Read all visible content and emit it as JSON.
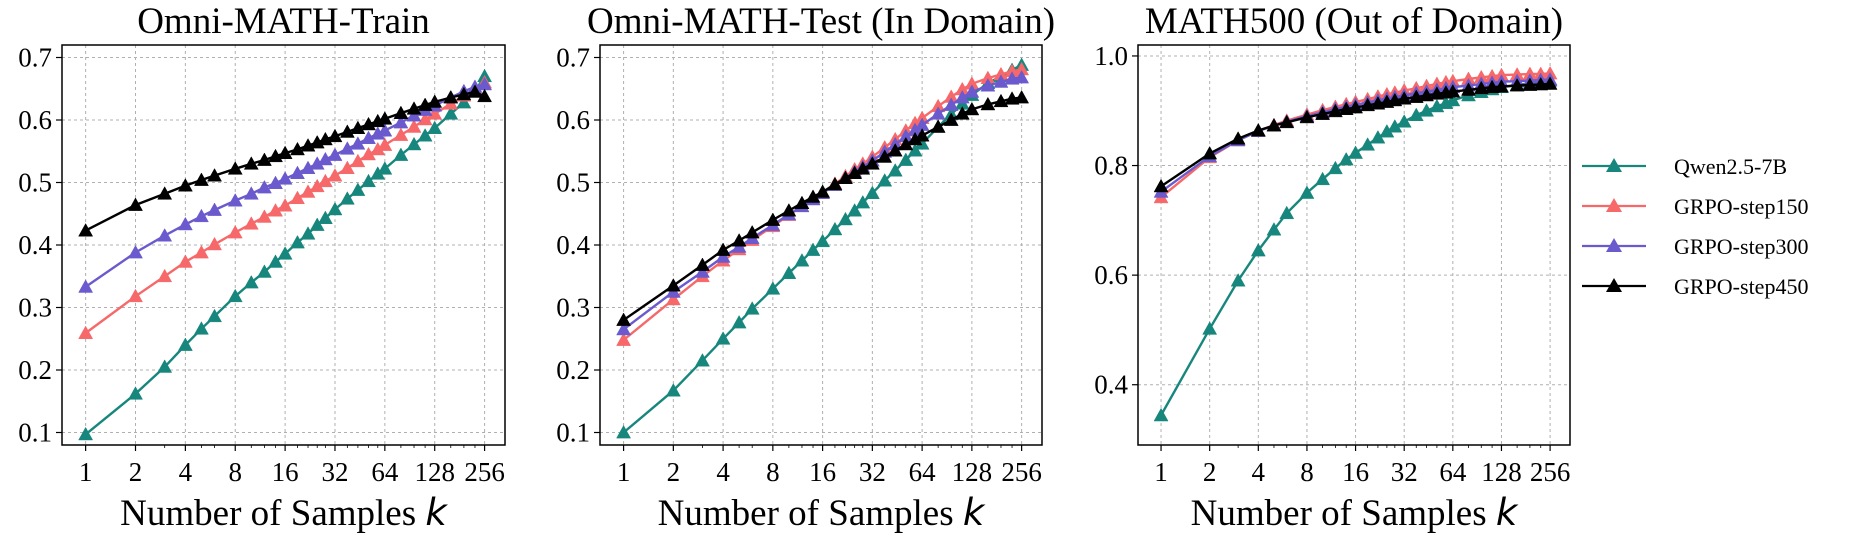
{
  "chart_data": [
    {
      "type": "line",
      "title": "Omni-MATH-Train",
      "xlabel": "Number of Samples",
      "xlabel_var": "k",
      "ylabel": "",
      "xscale": "log2",
      "x": [
        1,
        2,
        3,
        4,
        5,
        6,
        8,
        10,
        12,
        14,
        16,
        19,
        22,
        25,
        28,
        32,
        38,
        44,
        51,
        58,
        64,
        80,
        96,
        112,
        128,
        160,
        192,
        224,
        256
      ],
      "xticks": [
        1,
        2,
        4,
        8,
        16,
        32,
        64,
        128,
        256
      ],
      "xtick_labels": [
        "1",
        "2",
        "4",
        "8",
        "16",
        "32",
        "64",
        "128",
        "256"
      ],
      "ylim": [
        0.08,
        0.72
      ],
      "yticks": [
        0.1,
        0.2,
        0.3,
        0.4,
        0.5,
        0.6,
        0.7
      ],
      "ytick_labels": [
        "0.1",
        "0.2",
        "0.3",
        "0.4",
        "0.5",
        "0.6",
        "0.7"
      ],
      "grid": true,
      "series": [
        {
          "name": "Qwen2.5-7B",
          "color": "#17877d",
          "values": [
            0.097,
            0.162,
            0.205,
            0.24,
            0.266,
            0.286,
            0.318,
            0.34,
            0.357,
            0.373,
            0.386,
            0.404,
            0.418,
            0.432,
            0.443,
            0.457,
            0.474,
            0.488,
            0.502,
            0.514,
            0.522,
            0.544,
            0.561,
            0.575,
            0.587,
            0.61,
            0.628,
            0.646,
            0.67
          ]
        },
        {
          "name": "GRPO-step150",
          "color": "#f6686a",
          "values": [
            0.259,
            0.318,
            0.35,
            0.373,
            0.388,
            0.401,
            0.42,
            0.434,
            0.445,
            0.455,
            0.463,
            0.475,
            0.485,
            0.494,
            0.502,
            0.511,
            0.523,
            0.534,
            0.545,
            0.553,
            0.56,
            0.576,
            0.589,
            0.601,
            0.61,
            0.626,
            0.639,
            0.65,
            0.66
          ]
        },
        {
          "name": "GRPO-step300",
          "color": "#6a5acd",
          "values": [
            0.333,
            0.388,
            0.415,
            0.433,
            0.446,
            0.456,
            0.471,
            0.482,
            0.492,
            0.499,
            0.506,
            0.515,
            0.523,
            0.53,
            0.537,
            0.544,
            0.554,
            0.562,
            0.571,
            0.578,
            0.583,
            0.596,
            0.607,
            0.616,
            0.623,
            0.636,
            0.646,
            0.653,
            0.657
          ]
        },
        {
          "name": "GRPO-step450",
          "color": "#000000",
          "values": [
            0.423,
            0.464,
            0.482,
            0.495,
            0.504,
            0.511,
            0.522,
            0.53,
            0.536,
            0.542,
            0.547,
            0.553,
            0.559,
            0.564,
            0.569,
            0.574,
            0.581,
            0.587,
            0.593,
            0.598,
            0.602,
            0.611,
            0.618,
            0.624,
            0.629,
            0.636,
            0.641,
            0.645,
            0.638
          ]
        }
      ]
    },
    {
      "type": "line",
      "title": "Omni-MATH-Test (In Domain)",
      "xlabel": "Number of Samples",
      "xlabel_var": "k",
      "ylabel": "",
      "xscale": "log2",
      "x": [
        1,
        2,
        3,
        4,
        5,
        6,
        8,
        10,
        12,
        14,
        16,
        19,
        22,
        25,
        28,
        32,
        38,
        44,
        51,
        58,
        64,
        80,
        96,
        112,
        128,
        160,
        192,
        224,
        256
      ],
      "xticks": [
        1,
        2,
        4,
        8,
        16,
        32,
        64,
        128,
        256
      ],
      "xtick_labels": [
        "1",
        "2",
        "4",
        "8",
        "16",
        "32",
        "64",
        "128",
        "256"
      ],
      "ylim": [
        0.08,
        0.72
      ],
      "yticks": [
        0.1,
        0.2,
        0.3,
        0.4,
        0.5,
        0.6,
        0.7
      ],
      "ytick_labels": [
        "0.1",
        "0.2",
        "0.3",
        "0.4",
        "0.5",
        "0.6",
        "0.7"
      ],
      "grid": true,
      "series": [
        {
          "name": "Qwen2.5-7B",
          "color": "#17877d",
          "values": [
            0.1,
            0.167,
            0.215,
            0.25,
            0.276,
            0.298,
            0.33,
            0.355,
            0.375,
            0.392,
            0.406,
            0.425,
            0.441,
            0.455,
            0.468,
            0.483,
            0.503,
            0.519,
            0.536,
            0.551,
            0.562,
            0.589,
            0.609,
            0.626,
            0.64,
            0.659,
            0.67,
            0.68,
            0.688
          ]
        },
        {
          "name": "GRPO-step150",
          "color": "#f6686a",
          "values": [
            0.248,
            0.313,
            0.35,
            0.375,
            0.393,
            0.408,
            0.43,
            0.448,
            0.462,
            0.474,
            0.484,
            0.498,
            0.51,
            0.521,
            0.53,
            0.541,
            0.556,
            0.569,
            0.583,
            0.595,
            0.603,
            0.622,
            0.637,
            0.649,
            0.658,
            0.667,
            0.673,
            0.678,
            0.681
          ]
        },
        {
          "name": "GRPO-step300",
          "color": "#6a5acd",
          "values": [
            0.265,
            0.325,
            0.357,
            0.381,
            0.397,
            0.411,
            0.432,
            0.449,
            0.462,
            0.473,
            0.483,
            0.496,
            0.507,
            0.517,
            0.525,
            0.535,
            0.549,
            0.561,
            0.574,
            0.584,
            0.592,
            0.61,
            0.624,
            0.636,
            0.645,
            0.655,
            0.661,
            0.666,
            0.668
          ]
        },
        {
          "name": "GRPO-step450",
          "color": "#000000",
          "values": [
            0.28,
            0.335,
            0.368,
            0.392,
            0.407,
            0.42,
            0.44,
            0.455,
            0.467,
            0.477,
            0.485,
            0.497,
            0.507,
            0.515,
            0.522,
            0.53,
            0.541,
            0.551,
            0.561,
            0.569,
            0.575,
            0.589,
            0.6,
            0.61,
            0.617,
            0.625,
            0.63,
            0.634,
            0.636
          ]
        }
      ]
    },
    {
      "type": "line",
      "title": "MATH500 (Out of Domain)",
      "xlabel": "Number of Samples",
      "xlabel_var": "k",
      "ylabel": "",
      "xscale": "log2",
      "x": [
        1,
        2,
        3,
        4,
        5,
        6,
        8,
        10,
        12,
        14,
        16,
        19,
        22,
        25,
        28,
        32,
        38,
        44,
        51,
        58,
        64,
        80,
        96,
        112,
        128,
        160,
        192,
        224,
        256
      ],
      "xticks": [
        1,
        2,
        4,
        8,
        16,
        32,
        64,
        128,
        256
      ],
      "xtick_labels": [
        "1",
        "2",
        "4",
        "8",
        "16",
        "32",
        "64",
        "128",
        "256"
      ],
      "ylim": [
        0.29,
        1.02
      ],
      "yticks": [
        0.4,
        0.6,
        0.8,
        1.0
      ],
      "ytick_labels": [
        "0.4",
        "0.6",
        "0.8",
        "1.0"
      ],
      "grid": true,
      "series": [
        {
          "name": "Qwen2.5-7B",
          "color": "#17877d",
          "values": [
            0.344,
            0.502,
            0.59,
            0.645,
            0.683,
            0.713,
            0.75,
            0.775,
            0.795,
            0.811,
            0.823,
            0.838,
            0.851,
            0.862,
            0.871,
            0.88,
            0.892,
            0.9,
            0.908,
            0.914,
            0.919,
            0.928,
            0.934,
            0.939,
            0.943,
            0.947,
            0.95,
            0.953,
            0.955
          ]
        },
        {
          "name": "GRPO-step150",
          "color": "#f6686a",
          "values": [
            0.742,
            0.815,
            0.846,
            0.863,
            0.874,
            0.882,
            0.893,
            0.901,
            0.907,
            0.912,
            0.916,
            0.921,
            0.926,
            0.93,
            0.933,
            0.937,
            0.941,
            0.945,
            0.949,
            0.952,
            0.954,
            0.958,
            0.961,
            0.963,
            0.965,
            0.966,
            0.967,
            0.967,
            0.968
          ]
        },
        {
          "name": "GRPO-step300",
          "color": "#6a5acd",
          "values": [
            0.752,
            0.817,
            0.846,
            0.863,
            0.873,
            0.88,
            0.89,
            0.897,
            0.903,
            0.907,
            0.911,
            0.915,
            0.919,
            0.922,
            0.925,
            0.928,
            0.932,
            0.935,
            0.938,
            0.941,
            0.943,
            0.946,
            0.949,
            0.951,
            0.953,
            0.954,
            0.955,
            0.956,
            0.957
          ]
        },
        {
          "name": "GRPO-step450",
          "color": "#000000",
          "values": [
            0.762,
            0.822,
            0.849,
            0.864,
            0.873,
            0.879,
            0.888,
            0.894,
            0.899,
            0.903,
            0.906,
            0.91,
            0.913,
            0.916,
            0.919,
            0.922,
            0.925,
            0.928,
            0.931,
            0.933,
            0.935,
            0.938,
            0.941,
            0.943,
            0.944,
            0.946,
            0.947,
            0.948,
            0.949
          ]
        }
      ]
    }
  ],
  "legend": {
    "placement": "right",
    "entries": [
      {
        "label": "Qwen2.5-7B",
        "color": "#17877d"
      },
      {
        "label": "GRPO-step150",
        "color": "#f6686a"
      },
      {
        "label": "GRPO-step300",
        "color": "#6a5acd"
      },
      {
        "label": "GRPO-step450",
        "color": "#000000"
      }
    ]
  }
}
